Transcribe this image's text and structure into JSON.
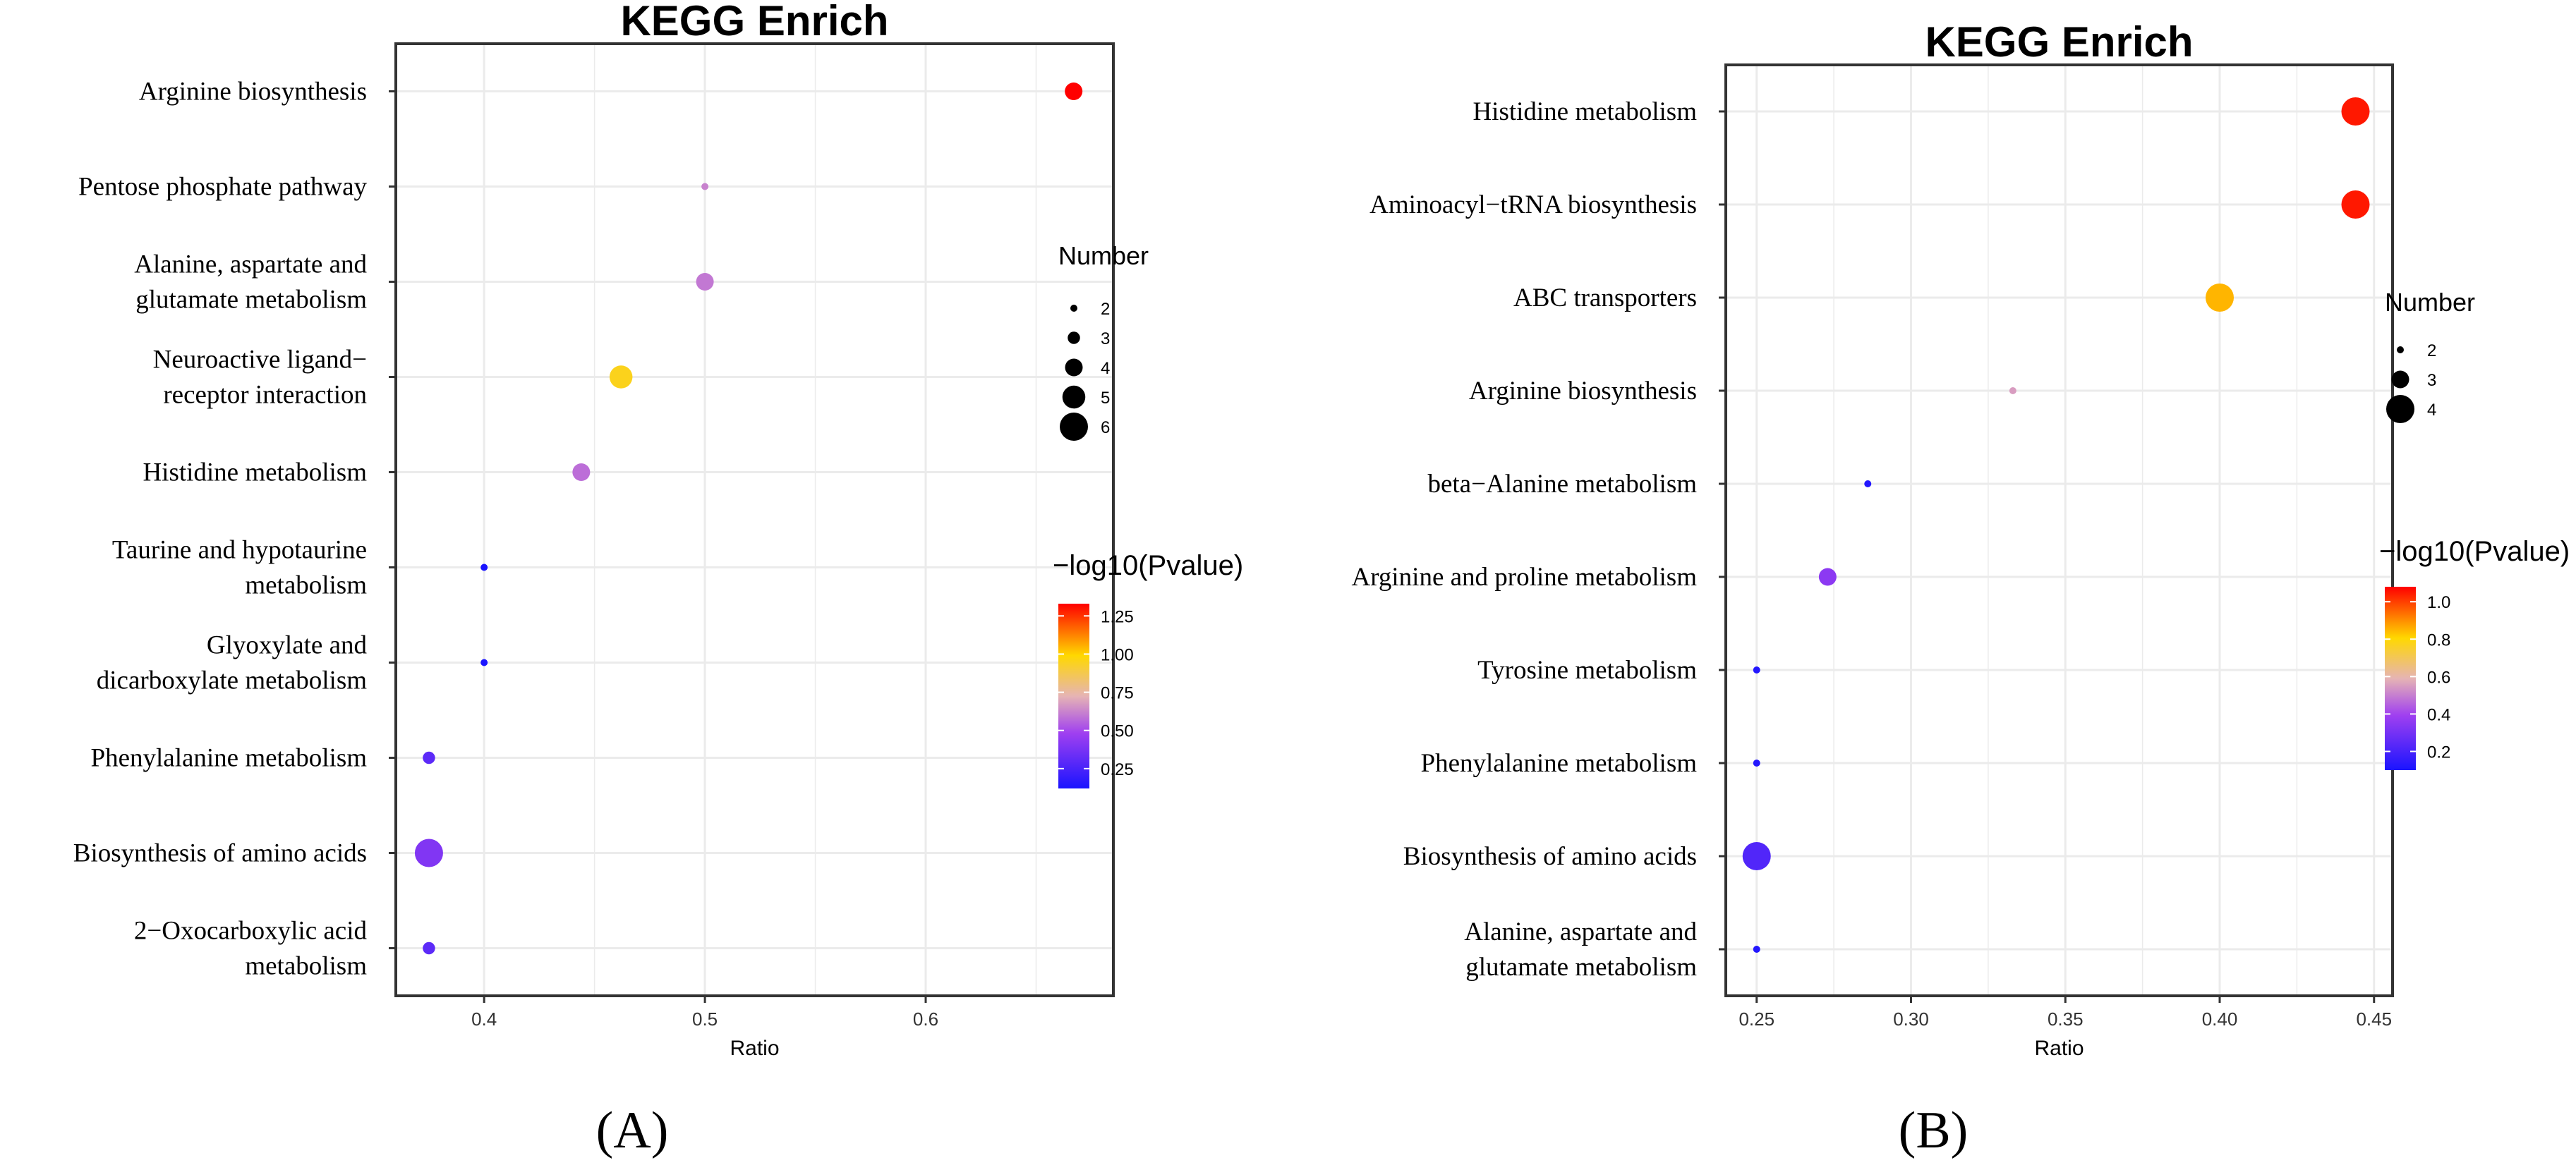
{
  "colors": {
    "low": "#1a14ff",
    "mid": "#ffd800",
    "high": "#ff0000",
    "grid": "#ebebeb",
    "frame": "#333333"
  },
  "chart_data": [
    {
      "type": "scatter",
      "panel_label": "(A)",
      "title": "KEGG Enrich",
      "xlabel": "Ratio",
      "xlim": [
        0.36,
        0.685
      ],
      "xticks": [
        0.4,
        0.5,
        0.6
      ],
      "xtick_labels": [
        "0.4",
        "0.5",
        "0.6"
      ],
      "categories": [
        [
          "Arginine biosynthesis"
        ],
        [
          "Pentose phosphate pathway"
        ],
        [
          "Alanine, aspartate and",
          "glutamate metabolism"
        ],
        [
          "Neuroactive ligand−",
          "receptor interaction"
        ],
        [
          "Histidine metabolism"
        ],
        [
          "Taurine and hypotaurine",
          "metabolism"
        ],
        [
          "Glyoxylate and",
          "dicarboxylate metabolism"
        ],
        [
          "Phenylalanine metabolism"
        ],
        [
          "Biosynthesis of amino acids"
        ],
        [
          "2−Oxocarboxylic acid",
          "metabolism"
        ]
      ],
      "ratio": [
        0.667,
        0.5,
        0.5,
        0.462,
        0.444,
        0.4,
        0.4,
        0.375,
        0.375,
        0.375
      ],
      "number": [
        4,
        2,
        4,
        5,
        4,
        2,
        2,
        3,
        6,
        3
      ],
      "neg_log10_pvalue": [
        1.33,
        0.62,
        0.6,
        0.95,
        0.58,
        0.12,
        0.12,
        0.3,
        0.4,
        0.3
      ],
      "size_legend": {
        "title": "Number",
        "values": [
          2,
          3,
          4,
          5,
          6
        ],
        "labels": [
          "2",
          "3",
          "4",
          "5",
          "6"
        ]
      },
      "color_legend": {
        "title": "−log10(Pvalue)",
        "range": [
          0.12,
          1.33
        ],
        "ticks": [
          0.25,
          0.5,
          0.75,
          1.0,
          1.25
        ],
        "tick_labels": [
          "0.25",
          "0.50",
          "0.75",
          "1.00",
          "1.25"
        ]
      }
    },
    {
      "type": "scatter",
      "panel_label": "(B)",
      "title": "KEGG Enrich",
      "xlabel": "Ratio",
      "xlim": [
        0.24,
        0.456
      ],
      "xticks": [
        0.25,
        0.3,
        0.35,
        0.4,
        0.45
      ],
      "xtick_labels": [
        "0.25",
        "0.30",
        "0.35",
        "0.40",
        "0.45"
      ],
      "categories": [
        [
          "Histidine metabolism"
        ],
        [
          "Aminoacyl−tRNA biosynthesis"
        ],
        [
          "ABC transporters"
        ],
        [
          "Arginine biosynthesis"
        ],
        [
          "beta−Alanine metabolism"
        ],
        [
          "Arginine and proline metabolism"
        ],
        [
          "Tyrosine metabolism"
        ],
        [
          "Phenylalanine metabolism"
        ],
        [
          "Biosynthesis of amino acids"
        ],
        [
          "Alanine, aspartate and",
          "glutamate metabolism"
        ]
      ],
      "ratio": [
        0.444,
        0.444,
        0.4,
        0.333,
        0.286,
        0.273,
        0.25,
        0.25,
        0.25,
        0.25
      ],
      "number": [
        4,
        4,
        4,
        2,
        2,
        3,
        2,
        2,
        4,
        2
      ],
      "neg_log10_pvalue": [
        1.05,
        1.05,
        0.85,
        0.55,
        0.12,
        0.35,
        0.12,
        0.12,
        0.22,
        0.12
      ],
      "size_legend": {
        "title": "Number",
        "values": [
          2,
          3,
          4
        ],
        "labels": [
          "2",
          "3",
          "4"
        ]
      },
      "color_legend": {
        "title": "−log10(Pvalue)",
        "range": [
          0.1,
          1.08
        ],
        "ticks": [
          0.2,
          0.4,
          0.6,
          0.8,
          1.0
        ],
        "tick_labels": [
          "0.2",
          "0.4",
          "0.6",
          "0.8",
          "1.0"
        ]
      }
    }
  ]
}
